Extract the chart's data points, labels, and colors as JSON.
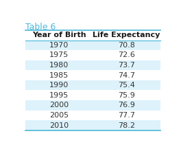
{
  "title": "Table 6",
  "col_headers": [
    "Year of Birth",
    "Life Expectancy"
  ],
  "rows": [
    [
      "1970",
      "70.8"
    ],
    [
      "1975",
      "72.6"
    ],
    [
      "1980",
      "73.7"
    ],
    [
      "1985",
      "74.7"
    ],
    [
      "1990",
      "75.4"
    ],
    [
      "1995",
      "75.9"
    ],
    [
      "2000",
      "76.9"
    ],
    [
      "2005",
      "77.7"
    ],
    [
      "2010",
      "78.2"
    ]
  ],
  "title_color": "#4ab8d8",
  "row_alt_color": "#ddf2fb",
  "row_white_color": "#ffffff",
  "text_color": "#333333",
  "header_text_color": "#1a1a1a",
  "border_color": "#4ab8d8",
  "title_fontsize": 9,
  "header_fontsize": 8,
  "cell_fontsize": 8
}
